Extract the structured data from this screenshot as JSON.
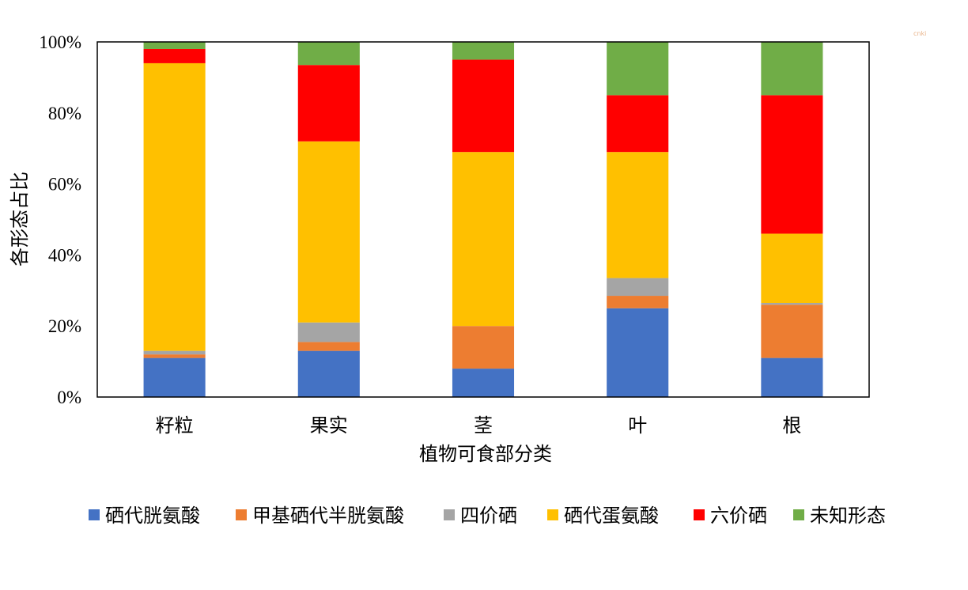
{
  "chart_data": {
    "type": "bar",
    "stacked": true,
    "categories": [
      "籽粒",
      "果实",
      "茎",
      "叶",
      "根"
    ],
    "series": [
      {
        "name": "硒代胱氨酸",
        "color": "#4472C4",
        "values": [
          11,
          13,
          8,
          25,
          11
        ]
      },
      {
        "name": "甲基硒代半胱氨酸",
        "color": "#ED7D31",
        "values": [
          1,
          2.5,
          12,
          3.5,
          15
        ]
      },
      {
        "name": "四价硒",
        "color": "#A5A5A5",
        "values": [
          1,
          5.5,
          0,
          5,
          0.5
        ]
      },
      {
        "name": "硒代蛋氨酸",
        "color": "#FFC000",
        "values": [
          81,
          51,
          49,
          35.5,
          19.5
        ]
      },
      {
        "name": "六价硒",
        "color": "#FF0000",
        "values": [
          4,
          21.5,
          26,
          16,
          39
        ]
      },
      {
        "name": "未知形态",
        "color": "#70AD47",
        "values": [
          2,
          6.5,
          5,
          15,
          15
        ]
      }
    ],
    "xlabel": "植物可食部分类",
    "ylabel": "各形态占比",
    "ylim": [
      0,
      100
    ],
    "yticks": [
      "0%",
      "20%",
      "40%",
      "60%",
      "80%",
      "100%"
    ],
    "grid": false,
    "legend_position": "bottom"
  },
  "watermark": "cnki"
}
